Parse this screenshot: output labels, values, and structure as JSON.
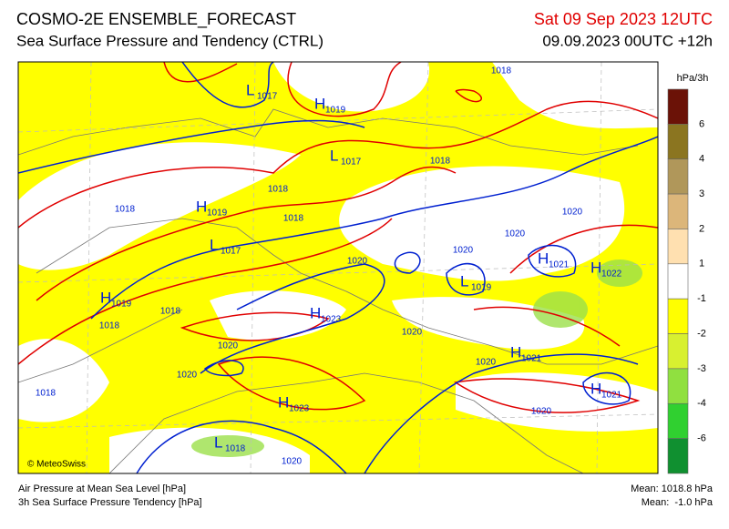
{
  "header": {
    "title": "COSMO-2E ENSEMBLE_FORECAST",
    "subtitle": "Sea Surface Pressure and Tendency (CTRL)",
    "valid": "Sat 09 Sep 2023 12UTC",
    "run": "09.09.2023 00UTC +12h"
  },
  "legend": {
    "unit": "hPa/3h",
    "colors": [
      "#6b1207",
      "#8b7520",
      "#b0975a",
      "#dcb67a",
      "#ffe0b0",
      "#ffffff",
      "#ffff00",
      "#d8f030",
      "#90e040",
      "#30d030",
      "#109030"
    ],
    "ticks": [
      6,
      4,
      3,
      2,
      1,
      -1,
      -2,
      -3,
      -4,
      -6
    ]
  },
  "map": {
    "credit": "© MeteoSwiss",
    "centers": [
      {
        "symbol": "L",
        "value": "1017"
      },
      {
        "symbol": "H",
        "value": "1019"
      },
      {
        "symbol": "L",
        "value": "1017"
      },
      {
        "symbol": "H",
        "value": "1019"
      },
      {
        "symbol": "L",
        "value": "1017"
      },
      {
        "symbol": "H",
        "value": "1019"
      },
      {
        "symbol": "H",
        "value": "1023"
      },
      {
        "symbol": "L",
        "value": "1019"
      },
      {
        "symbol": "H",
        "value": "1021"
      },
      {
        "symbol": "H",
        "value": "1022"
      },
      {
        "symbol": "H",
        "value": "1021"
      },
      {
        "symbol": "H",
        "value": "1021"
      },
      {
        "symbol": "H",
        "value": "1023"
      },
      {
        "symbol": "L",
        "value": "1018"
      }
    ],
    "isobar_labels": [
      "1018",
      "1018",
      "1018",
      "1018",
      "1018",
      "1020",
      "1020",
      "1020",
      "1020",
      "1018",
      "1018",
      "1020",
      "1020",
      "1020",
      "1020",
      "1018",
      "1020",
      "1020"
    ]
  },
  "footer": {
    "left": [
      "Air Pressure at Mean Sea Level [hPa]",
      "3h Sea Surface Pressure Tendency [hPa]"
    ],
    "right": [
      "Mean: 1018.8 hPa",
      "Mean:  -1.0 hPa"
    ]
  }
}
